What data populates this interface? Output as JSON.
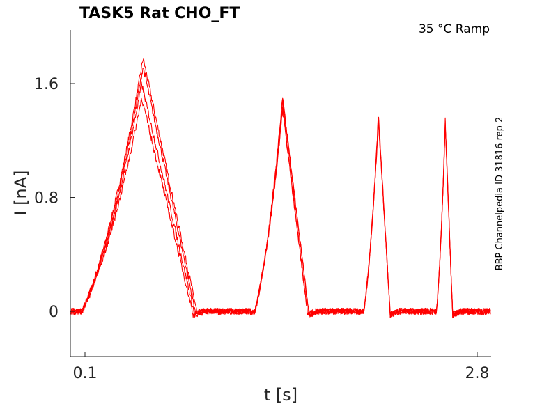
{
  "chart_data": {
    "type": "line",
    "title": "TASK5  Rat  CHO_FT",
    "annotation": "35 °C  Ramp",
    "side_label": "BBP Channelpedia ID 31816 rep 2",
    "xlabel": "t [s]",
    "ylabel": "I [nA]",
    "xlim": [
      0.0,
      2.8
    ],
    "ylim": [
      -0.3,
      2.0
    ],
    "x_ticks": [
      {
        "value": 0.1,
        "label": "0.1"
      },
      {
        "value": 2.8,
        "label": "2.8"
      }
    ],
    "y_ticks": [
      {
        "value": 0,
        "label": "0"
      },
      {
        "value": 0.8,
        "label": "0.8"
      },
      {
        "value": 1.6,
        "label": "1.6"
      }
    ],
    "grid": false,
    "line_color": "#ff0000",
    "series": [
      {
        "peaks": [
          {
            "x": [
              0.08,
              0.5,
              0.87
            ],
            "y": [
              0,
              1.78,
              0
            ]
          },
          {
            "x": [
              1.27,
              1.46,
              1.64
            ],
            "y": [
              0,
              1.5,
              0
            ]
          },
          {
            "x": [
              2.02,
              2.12,
              2.2
            ],
            "y": [
              0,
              1.38,
              0
            ]
          },
          {
            "x": [
              2.52,
              2.58,
              2.63
            ],
            "y": [
              0,
              1.34,
              0
            ]
          }
        ]
      },
      {
        "peaks": [
          {
            "x": [
              0.08,
              0.5,
              0.86
            ],
            "y": [
              0,
              1.72,
              0
            ]
          },
          {
            "x": [
              1.27,
              1.46,
              1.64
            ],
            "y": [
              0,
              1.47,
              0
            ]
          },
          {
            "x": [
              2.02,
              2.12,
              2.2
            ],
            "y": [
              0,
              1.36,
              0
            ]
          },
          {
            "x": [
              2.52,
              2.58,
              2.63
            ],
            "y": [
              0,
              1.32,
              0
            ]
          }
        ]
      },
      {
        "peaks": [
          {
            "x": [
              0.08,
              0.49,
              0.85
            ],
            "y": [
              0,
              1.6,
              0
            ]
          },
          {
            "x": [
              1.27,
              1.46,
              1.63
            ],
            "y": [
              0,
              1.44,
              0
            ]
          },
          {
            "x": [
              2.02,
              2.12,
              2.2
            ],
            "y": [
              0,
              1.35,
              0
            ]
          },
          {
            "x": [
              2.52,
              2.58,
              2.63
            ],
            "y": [
              0,
              1.31,
              0
            ]
          }
        ]
      },
      {
        "peaks": [
          {
            "x": [
              0.08,
              0.49,
              0.84
            ],
            "y": [
              0,
              1.5,
              0
            ]
          },
          {
            "x": [
              1.27,
              1.46,
              1.63
            ],
            "y": [
              0,
              1.42,
              0
            ]
          },
          {
            "x": [
              2.02,
              2.12,
              2.2
            ],
            "y": [
              0,
              1.34,
              0
            ]
          },
          {
            "x": [
              2.52,
              2.58,
              2.63
            ],
            "y": [
              0,
              1.3,
              0
            ]
          }
        ]
      }
    ]
  }
}
